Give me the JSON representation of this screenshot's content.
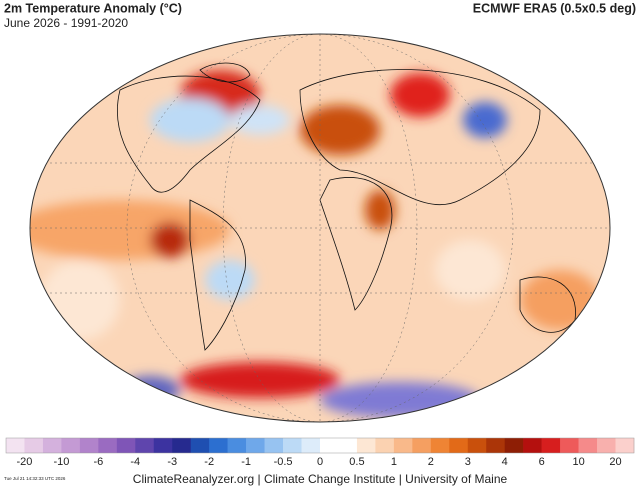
{
  "header": {
    "title": "2m Temperature Anomaly (°C)",
    "subtitle": "June 2026 - 1991-2020",
    "source": "ECMWF ERA5 (0.5x0.5 deg)"
  },
  "colorbar": {
    "labels": [
      "-20",
      "-10",
      "-6",
      "-4",
      "-3",
      "-2",
      "-1",
      "-0.5",
      "0",
      "0.5",
      "1",
      "2",
      "3",
      "4",
      "6",
      "10",
      "20"
    ],
    "colors": [
      "#f3e3f1",
      "#e6cbe6",
      "#d4b1dd",
      "#c49ad4",
      "#b183cb",
      "#9a6bc1",
      "#7f55b7",
      "#5f45ad",
      "#3c33a0",
      "#262a8f",
      "#1f4fb1",
      "#2c6fd0",
      "#4a8de0",
      "#6fa8ea",
      "#97c3f1",
      "#bcdaf6",
      "#ddecfa",
      "#ffffff",
      "#ffffff",
      "#fde7d4",
      "#fbd2b1",
      "#f9b98a",
      "#f59f61",
      "#ef8434",
      "#e26a18",
      "#c9500c",
      "#ab3508",
      "#8e1e05",
      "#b4100e",
      "#d71e1e",
      "#ee5a5a",
      "#f58a8a",
      "#f8b0ad",
      "#fbd0cc"
    ]
  },
  "footer": {
    "credit": "ClimateReanalyzer.org | Climate Change Institute | University of Maine",
    "timestamp": "Tue Jul 21 14:32:33 UTC 2026"
  }
}
